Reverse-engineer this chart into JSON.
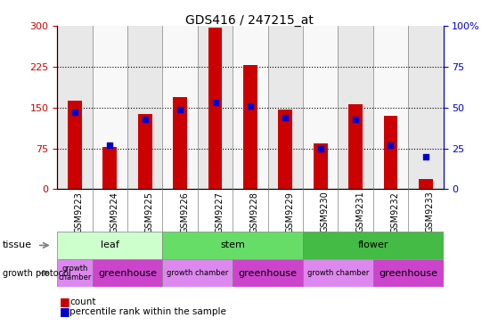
{
  "title": "GDS416 / 247215_at",
  "samples": [
    "GSM9223",
    "GSM9224",
    "GSM9225",
    "GSM9226",
    "GSM9227",
    "GSM9228",
    "GSM9229",
    "GSM9230",
    "GSM9231",
    "GSM9232",
    "GSM9233"
  ],
  "counts": [
    162,
    78,
    138,
    170,
    298,
    228,
    147,
    84,
    157,
    135,
    18
  ],
  "percentiles": [
    47,
    27,
    43,
    49,
    53,
    51,
    44,
    25,
    43,
    27,
    20
  ],
  "ylim_left": [
    0,
    300
  ],
  "ylim_right": [
    0,
    100
  ],
  "yticks_left": [
    0,
    75,
    150,
    225,
    300
  ],
  "yticks_right": [
    0,
    25,
    50,
    75,
    100
  ],
  "ytick_right_labels": [
    "0",
    "25",
    "50",
    "75",
    "100%"
  ],
  "bar_color": "#cc0000",
  "dot_color": "#0000cc",
  "tick_color_left": "#cc0000",
  "tick_color_right": "#0000cc",
  "col_bg_odd": "#e8e8e8",
  "col_bg_even": "#f8f8f8",
  "grid_color": "#000000",
  "tissue_rows": [
    {
      "label": "leaf",
      "start": 0,
      "end": 2,
      "color": "#ccffcc"
    },
    {
      "label": "stem",
      "start": 3,
      "end": 6,
      "color": "#66dd66"
    },
    {
      "label": "flower",
      "start": 7,
      "end": 10,
      "color": "#44bb44"
    }
  ],
  "growth_rows": [
    {
      "label": "growth\nchamber",
      "start": 0,
      "end": 0,
      "color": "#dd88ee"
    },
    {
      "label": "greenhouse",
      "start": 1,
      "end": 2,
      "color": "#cc44cc"
    },
    {
      "label": "growth chamber",
      "start": 3,
      "end": 4,
      "color": "#dd88ee"
    },
    {
      "label": "greenhouse",
      "start": 5,
      "end": 6,
      "color": "#cc44cc"
    },
    {
      "label": "growth chamber",
      "start": 7,
      "end": 8,
      "color": "#dd88ee"
    },
    {
      "label": "greenhouse",
      "start": 9,
      "end": 10,
      "color": "#cc44cc"
    }
  ]
}
